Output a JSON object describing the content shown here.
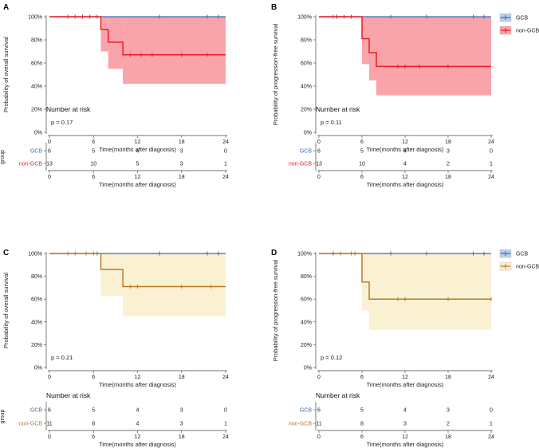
{
  "colors": {
    "gcb": "#3a6db5",
    "noncgb_red": "#ee1c25",
    "band_red": "#f9a4aa",
    "noncgb_brown": "#b77a2a",
    "band_brown": "#faf0d2",
    "axis": "#444444",
    "text": "#222222"
  },
  "chart_data": [
    {
      "type": "line",
      "subtype": "kaplan-meier",
      "panel_label": "A",
      "ylabel": "Probability of overall survival",
      "xlabel": "Time(months after diagnosis)",
      "xlim": [
        0,
        24
      ],
      "ylim": [
        0,
        100
      ],
      "x_ticks": [
        "0",
        "6",
        "12",
        "18",
        "24"
      ],
      "y_ticks": [
        "0%",
        "20%",
        "40%",
        "60%",
        "80%",
        "100%"
      ],
      "p_value": "p = 0.17",
      "band_color": "red",
      "series": [
        {
          "name": "GCB",
          "color": "gcb",
          "steps": [
            [
              0,
              100
            ],
            [
              24,
              100
            ]
          ],
          "censors": [
            [
              2.5,
              100
            ],
            [
              6.5,
              100
            ],
            [
              15,
              100
            ],
            [
              21.5,
              100
            ],
            [
              23,
              100
            ]
          ]
        },
        {
          "name": "non-GCB",
          "color": "red",
          "steps": [
            [
              0,
              100
            ],
            [
              7,
              100
            ],
            [
              7,
              89
            ],
            [
              8,
              89
            ],
            [
              8,
              78
            ],
            [
              10,
              78
            ],
            [
              10,
              67
            ],
            [
              24,
              67
            ]
          ],
          "censors": [
            [
              2.5,
              100
            ],
            [
              3.5,
              100
            ],
            [
              4.5,
              100
            ],
            [
              5.5,
              100
            ],
            [
              11,
              67
            ],
            [
              12.5,
              67
            ],
            [
              14,
              67
            ],
            [
              18,
              67
            ],
            [
              21.5,
              67
            ]
          ],
          "ci": [
            [
              7,
              100,
              70
            ],
            [
              8,
              100,
              55
            ],
            [
              10,
              100,
              42
            ],
            [
              24,
              100,
              42
            ]
          ]
        }
      ],
      "risk_table": {
        "title": "Number at risk",
        "ylabel": "group",
        "x_ticks": [
          "0",
          "6",
          "12",
          "18",
          "24"
        ],
        "xlabel": "Time(months after diagnosis)",
        "rows": [
          {
            "name": "GCB",
            "color": "gcb",
            "values": [
              "6",
              "5",
              "4",
              "3",
              "0"
            ]
          },
          {
            "name": "non-GCB",
            "color": "red",
            "values": [
              "13",
              "10",
              "5",
              "3",
              "1"
            ]
          }
        ]
      }
    },
    {
      "type": "line",
      "subtype": "kaplan-meier",
      "panel_label": "B",
      "ylabel": "Probability of progression-free survival",
      "xlabel": "Time(months after diagnosis)",
      "xlim": [
        0,
        24
      ],
      "ylim": [
        0,
        100
      ],
      "x_ticks": [
        "0",
        "6",
        "12",
        "18",
        "24"
      ],
      "y_ticks": [
        "0%",
        "20%",
        "40%",
        "60%",
        "80%",
        "100%"
      ],
      "p_value": "p = 0.11",
      "band_color": "red",
      "legend": [
        "GCB",
        "non-GCB"
      ],
      "series": [
        {
          "name": "GCB",
          "color": "gcb",
          "steps": [
            [
              0,
              100
            ],
            [
              24,
              100
            ]
          ],
          "censors": [
            [
              2,
              100
            ],
            [
              4.5,
              100
            ],
            [
              10,
              100
            ],
            [
              15,
              100
            ],
            [
              21.5,
              100
            ],
            [
              23,
              100
            ]
          ]
        },
        {
          "name": "non-GCB",
          "color": "red",
          "steps": [
            [
              0,
              100
            ],
            [
              6,
              100
            ],
            [
              6,
              81
            ],
            [
              7,
              81
            ],
            [
              7,
              69
            ],
            [
              8,
              69
            ],
            [
              8,
              57
            ],
            [
              24,
              57
            ]
          ],
          "censors": [
            [
              2.5,
              100
            ],
            [
              3.5,
              100
            ],
            [
              4.5,
              100
            ],
            [
              11,
              57
            ],
            [
              12,
              57
            ],
            [
              14,
              57
            ],
            [
              18,
              57
            ]
          ],
          "ci": [
            [
              6,
              100,
              59
            ],
            [
              7,
              100,
              45
            ],
            [
              8,
              100,
              32
            ],
            [
              24,
              100,
              32
            ]
          ]
        }
      ],
      "risk_table": {
        "title": "Number at risk",
        "ylabel": "",
        "x_ticks": [
          "0",
          "6",
          "12",
          "18",
          "24"
        ],
        "xlabel": "Time(months after diagnosis)",
        "rows": [
          {
            "name": "GCB",
            "color": "gcb",
            "values": [
              "6",
              "5",
              "4",
              "3",
              "0"
            ]
          },
          {
            "name": "non-GCB",
            "color": "red",
            "values": [
              "13",
              "10",
              "4",
              "2",
              "1"
            ]
          }
        ]
      }
    },
    {
      "type": "line",
      "subtype": "kaplan-meier",
      "panel_label": "C",
      "ylabel": "Probability of overall survival",
      "xlabel": "Time(months after diagnosis)",
      "xlim": [
        0,
        24
      ],
      "ylim": [
        0,
        100
      ],
      "x_ticks": [
        "0",
        "6",
        "12",
        "18",
        "24"
      ],
      "y_ticks": [
        "0%",
        "20%",
        "40%",
        "60%",
        "80%",
        "100%"
      ],
      "p_value": "p = 0.21",
      "band_color": "brown",
      "series": [
        {
          "name": "GCB",
          "color": "gcb",
          "steps": [
            [
              0,
              100
            ],
            [
              24,
              100
            ]
          ],
          "censors": [
            [
              2.5,
              100
            ],
            [
              6.5,
              100
            ],
            [
              15,
              100
            ],
            [
              21.5,
              100
            ],
            [
              23,
              100
            ]
          ]
        },
        {
          "name": "non-GCB",
          "color": "brown",
          "steps": [
            [
              0,
              100
            ],
            [
              7,
              100
            ],
            [
              7,
              86
            ],
            [
              10,
              86
            ],
            [
              10,
              71
            ],
            [
              24,
              71
            ]
          ],
          "censors": [
            [
              2.5,
              100
            ],
            [
              3.5,
              100
            ],
            [
              5,
              100
            ],
            [
              6,
              100
            ],
            [
              11,
              71
            ],
            [
              12,
              71
            ],
            [
              18,
              71
            ],
            [
              22,
              71
            ]
          ],
          "ci": [
            [
              7,
              100,
              63
            ],
            [
              10,
              100,
              45
            ],
            [
              24,
              100,
              45
            ]
          ]
        }
      ],
      "risk_table": {
        "title": "Number at risk",
        "ylabel": "group",
        "x_ticks": [
          "0",
          "6",
          "12",
          "18",
          "24"
        ],
        "xlabel": "Time(months after diagnosis)",
        "rows": [
          {
            "name": "GCB",
            "color": "gcb",
            "values": [
              "6",
              "5",
              "4",
              "3",
              "0"
            ]
          },
          {
            "name": "non-GCB",
            "color": "brown",
            "values": [
              "11",
              "8",
              "4",
              "3",
              "1"
            ]
          }
        ]
      }
    },
    {
      "type": "line",
      "subtype": "kaplan-meier",
      "panel_label": "D",
      "ylabel": "Probability of progression-free survival",
      "xlabel": "Time(months after diagnosis)",
      "xlim": [
        0,
        24
      ],
      "ylim": [
        0,
        100
      ],
      "x_ticks": [
        "0",
        "6",
        "12",
        "18",
        "24"
      ],
      "y_ticks": [
        "0%",
        "20%",
        "40%",
        "60%",
        "80%",
        "100%"
      ],
      "p_value": "p = 0.12",
      "band_color": "brown",
      "legend": [
        "GCB",
        "non-GCB"
      ],
      "series": [
        {
          "name": "GCB",
          "color": "gcb",
          "steps": [
            [
              0,
              100
            ],
            [
              24,
              100
            ]
          ],
          "censors": [
            [
              2,
              100
            ],
            [
              4.5,
              100
            ],
            [
              10,
              100
            ],
            [
              15,
              100
            ],
            [
              21.5,
              100
            ],
            [
              23,
              100
            ]
          ]
        },
        {
          "name": "non-GCB",
          "color": "brown",
          "steps": [
            [
              0,
              100
            ],
            [
              6,
              100
            ],
            [
              6,
              75
            ],
            [
              7,
              75
            ],
            [
              7,
              60
            ],
            [
              24,
              60
            ]
          ],
          "censors": [
            [
              3,
              100
            ],
            [
              4.5,
              100
            ],
            [
              5,
              100
            ],
            [
              11,
              60
            ],
            [
              12,
              60
            ],
            [
              18,
              60
            ],
            [
              24,
              60
            ]
          ],
          "ci": [
            [
              6,
              100,
              50
            ],
            [
              7,
              100,
              33
            ],
            [
              24,
              100,
              33
            ]
          ]
        }
      ],
      "risk_table": {
        "title": "Number at risk",
        "ylabel": "",
        "x_ticks": [
          "0",
          "6",
          "12",
          "18",
          "24"
        ],
        "xlabel": "Time(months after diagnosis)",
        "rows": [
          {
            "name": "GCB",
            "color": "gcb",
            "values": [
              "6",
              "5",
              "4",
              "3",
              "0"
            ]
          },
          {
            "name": "non-GCB",
            "color": "brown",
            "values": [
              "11",
              "8",
              "3",
              "2",
              "1"
            ]
          }
        ]
      }
    }
  ]
}
